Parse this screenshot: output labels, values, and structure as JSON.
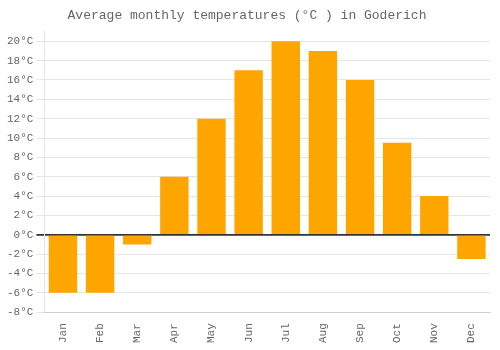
{
  "chart_data": {
    "type": "bar",
    "title": "Average monthly temperatures (°C ) in Goderich",
    "categories": [
      "Jan",
      "Feb",
      "Mar",
      "Apr",
      "May",
      "Jun",
      "Jul",
      "Aug",
      "Sep",
      "Oct",
      "Nov",
      "Dec"
    ],
    "values": [
      -6,
      -6,
      -1,
      6,
      12,
      17,
      20,
      19,
      16,
      9.5,
      4,
      -2.5
    ],
    "color": "#FFA500",
    "ylim": [
      -8,
      21
    ],
    "yticks": [
      {
        "value": -8,
        "label": "-8°C"
      },
      {
        "value": -6,
        "label": "-6°C"
      },
      {
        "value": -4,
        "label": "-4°C"
      },
      {
        "value": -2,
        "label": "-2°C"
      },
      {
        "value": 0,
        "label": "0°C"
      },
      {
        "value": 2,
        "label": "2°C"
      },
      {
        "value": 4,
        "label": "4°C"
      },
      {
        "value": 6,
        "label": "6°C"
      },
      {
        "value": 8,
        "label": "8°C"
      },
      {
        "value": 10,
        "label": "10°C"
      },
      {
        "value": 12,
        "label": "12°C"
      },
      {
        "value": 14,
        "label": "14°C"
      },
      {
        "value": 16,
        "label": "16°C"
      },
      {
        "value": 18,
        "label": "18°C"
      },
      {
        "value": 20,
        "label": "20°C"
      }
    ],
    "grid": true
  }
}
